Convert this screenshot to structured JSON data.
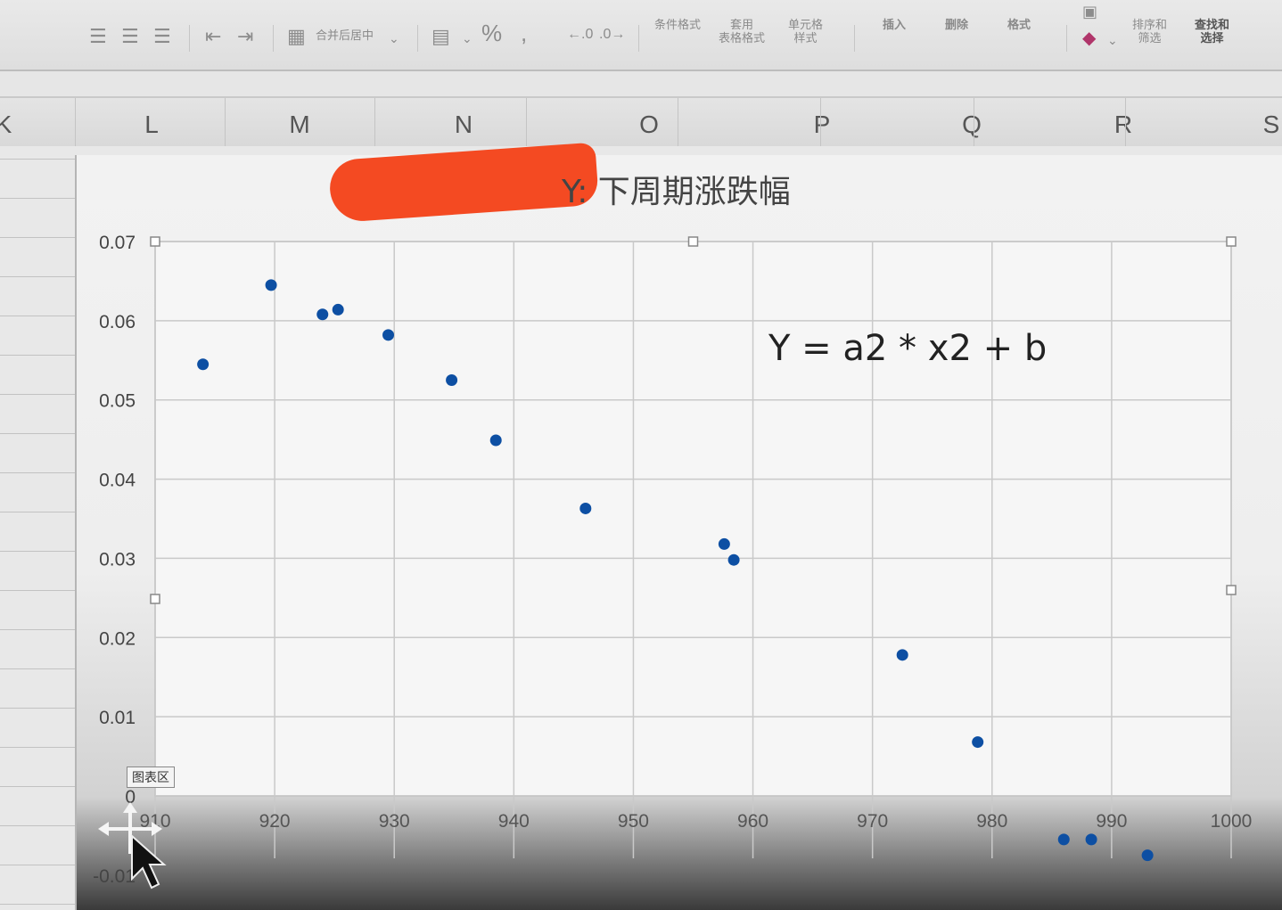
{
  "ribbon": {
    "merge_center": "合并后居中",
    "percent": "%",
    "conditional_format": "条件格式",
    "table_format": "套用\n表格格式",
    "cell_style": "单元格\n样式",
    "insert": "插入",
    "delete": "删除",
    "format": "格式",
    "sort_filter": "排序和\n筛选",
    "find_select": "查找和\n选择"
  },
  "columns": [
    "K",
    "L",
    "M",
    "N",
    "O",
    "P",
    "Q",
    "R",
    "S"
  ],
  "chart": {
    "title_visible": "Y: 下周期涨跌幅",
    "equation": "Y = a2 * x2 + b",
    "area_tag": "图表区",
    "accent_color": "#0d4fa3",
    "redaction_color": "#f44a22"
  },
  "chart_data": {
    "type": "scatter",
    "title": "Y: 下周期涨跌幅",
    "xlabel": "",
    "ylabel": "",
    "xlim": [
      910,
      1000
    ],
    "ylim": [
      -0.01,
      0.07
    ],
    "x_ticks": [
      "910",
      "920",
      "930",
      "940",
      "950",
      "960",
      "970",
      "980",
      "990",
      "1000"
    ],
    "y_ticks": [
      "0.07",
      "0.06",
      "0.05",
      "0.04",
      "0.03",
      "0.02",
      "0.01",
      "0",
      "-0.01"
    ],
    "grid": true,
    "series": [
      {
        "points": [
          [
            914.0,
            0.0545
          ],
          [
            919.7,
            0.0645
          ],
          [
            924.0,
            0.0608
          ],
          [
            925.3,
            0.0614
          ],
          [
            929.5,
            0.0582
          ],
          [
            934.8,
            0.0525
          ],
          [
            938.5,
            0.0449
          ],
          [
            946.0,
            0.0363
          ],
          [
            957.6,
            0.0318
          ],
          [
            958.4,
            0.0298
          ],
          [
            972.5,
            0.0178
          ],
          [
            978.8,
            0.0068
          ],
          [
            986.0,
            -0.0055
          ],
          [
            988.3,
            -0.0055
          ],
          [
            993.0,
            -0.0075
          ]
        ]
      }
    ]
  }
}
